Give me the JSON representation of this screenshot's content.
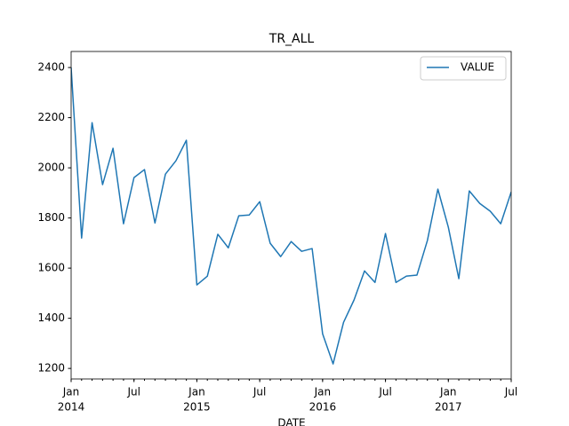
{
  "chart_data": {
    "type": "line",
    "title": "TR_ALL",
    "x_label": "DATE",
    "x": [
      "2014-01",
      "2014-02",
      "2014-03",
      "2014-04",
      "2014-05",
      "2014-06",
      "2014-07",
      "2014-08",
      "2014-09",
      "2014-10",
      "2014-11",
      "2014-12",
      "2015-01",
      "2015-02",
      "2015-03",
      "2015-04",
      "2015-05",
      "2015-06",
      "2015-07",
      "2015-08",
      "2015-09",
      "2015-10",
      "2015-11",
      "2015-12",
      "2016-01",
      "2016-02",
      "2016-03",
      "2016-04",
      "2016-05",
      "2016-06",
      "2016-07",
      "2016-08",
      "2016-09",
      "2016-10",
      "2016-11",
      "2016-12",
      "2017-01",
      "2017-02",
      "2017-03",
      "2017-04",
      "2017-05",
      "2017-06",
      "2017-07"
    ],
    "series": [
      {
        "name": "VALUE",
        "color": "#1f77b4",
        "values": [
          2400,
          1720,
          2180,
          1933,
          2078,
          1777,
          1961,
          1993,
          1780,
          1975,
          2028,
          2110,
          1533,
          1568,
          1735,
          1681,
          1809,
          1812,
          1865,
          1699,
          1646,
          1706,
          1667,
          1678,
          1338,
          1218,
          1384,
          1473,
          1589,
          1543,
          1738,
          1543,
          1568,
          1572,
          1710,
          1915,
          1763,
          1558,
          1908,
          1858,
          1827,
          1777,
          1904
        ]
      }
    ],
    "ylim": [
      1158,
      2464
    ],
    "yticks": [
      1200,
      1400,
      1600,
      1800,
      2000,
      2200,
      2400
    ],
    "xticks": [
      {
        "value": "2014-01",
        "label": "Jan",
        "year": "2014"
      },
      {
        "value": "2014-07",
        "label": "Jul"
      },
      {
        "value": "2015-01",
        "label": "Jan",
        "year": "2015"
      },
      {
        "value": "2015-07",
        "label": "Jul"
      },
      {
        "value": "2016-01",
        "label": "Jan",
        "year": "2016"
      },
      {
        "value": "2016-07",
        "label": "Jul"
      },
      {
        "value": "2017-01",
        "label": "Jan",
        "year": "2017"
      },
      {
        "value": "2017-07",
        "label": "Jul"
      }
    ],
    "legend": "upper right",
    "grid": false
  }
}
